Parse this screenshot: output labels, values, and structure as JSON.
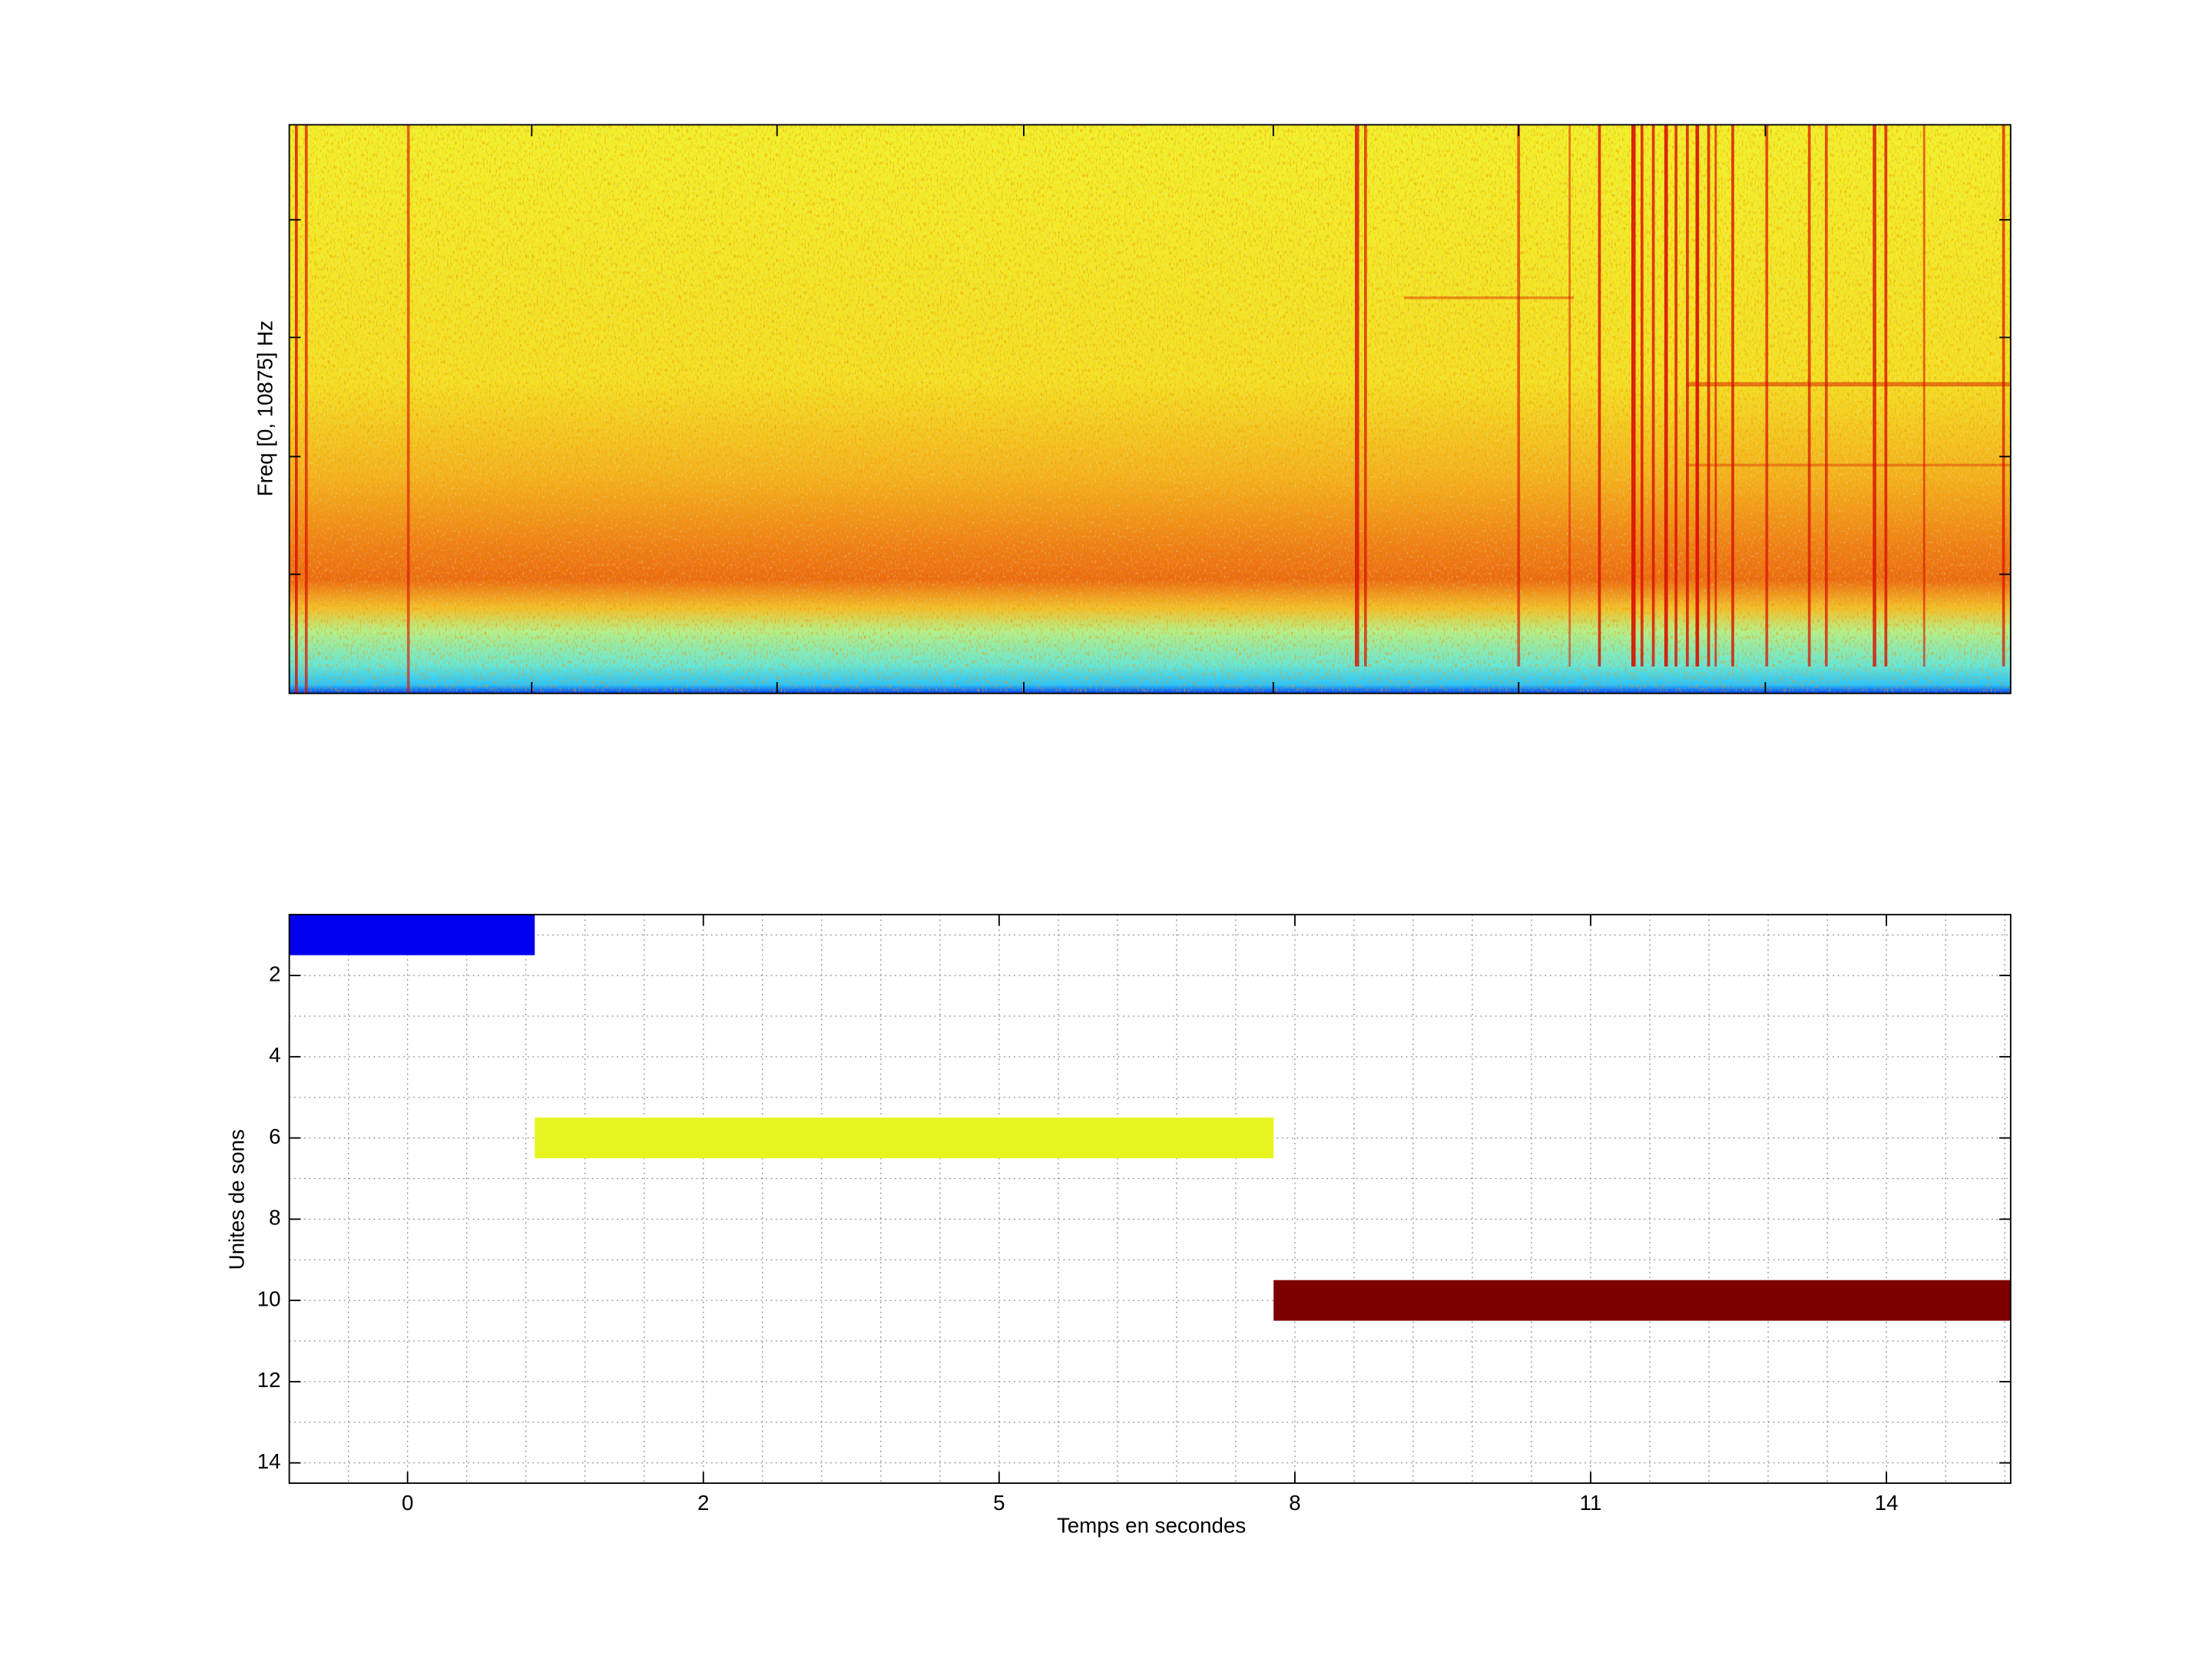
{
  "chart_data": [
    {
      "type": "spectrogram",
      "ylabel": "Freq [0, 10875] Hz"
    },
    {
      "type": "segments",
      "xlabel": "Temps en secondes",
      "ylabel": "Unites de sons",
      "xlim": [
        0,
        29.1
      ],
      "ylim": [
        0.5,
        14.5
      ],
      "y_reversed": true,
      "grid": true,
      "xticks": [
        {
          "value": 2,
          "label": "0"
        },
        {
          "value": 7,
          "label": "2"
        },
        {
          "value": 12,
          "label": "5"
        },
        {
          "value": 17,
          "label": "8"
        },
        {
          "value": 22,
          "label": "11"
        },
        {
          "value": 27,
          "label": "14"
        }
      ],
      "xminorticks": [
        1,
        3,
        4,
        5,
        6,
        8,
        9,
        10,
        11,
        13,
        14,
        15,
        16,
        18,
        19,
        20,
        21,
        23,
        24,
        25,
        26,
        28,
        29
      ],
      "yticks": [
        2,
        4,
        6,
        8,
        10,
        12,
        14
      ],
      "yminorticks": [
        1,
        3,
        5,
        7,
        9,
        11,
        13
      ],
      "segments": [
        {
          "unit": 1,
          "start": 0,
          "end": 4.15,
          "color": "#0000f0"
        },
        {
          "unit": 6,
          "start": 4.15,
          "end": 16.64,
          "color": "#e6f51e"
        },
        {
          "unit": 10,
          "start": 16.64,
          "end": 29.1,
          "color": "#7c0000"
        }
      ]
    }
  ]
}
